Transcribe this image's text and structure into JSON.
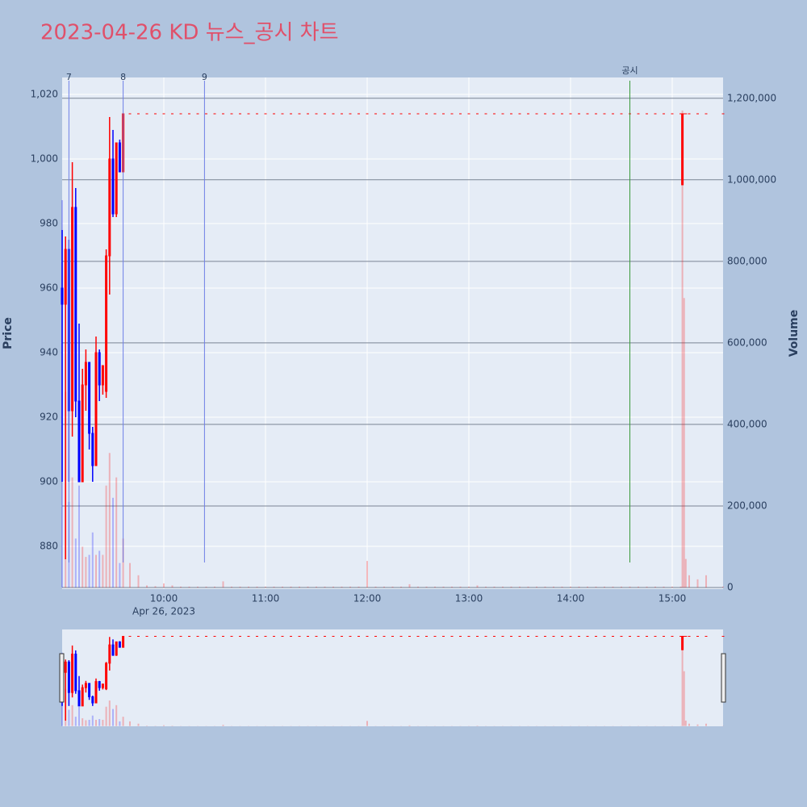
{
  "chart_data": {
    "type": "candlestick",
    "title": "2023-04-26 KD 뉴스_공시 차트",
    "y_label": "Price",
    "y2_label": "Volume",
    "x_sublabel": "Apr 26, 2023",
    "up_color": "#ff0000",
    "down_color": "#0000ff",
    "xlim": [
      "09:00",
      "15:30"
    ],
    "xticks": [
      "10:00",
      "11:00",
      "12:00",
      "13:00",
      "14:00",
      "15:00"
    ],
    "ylim": [
      866.75,
      1025.25
    ],
    "yticks": [
      880,
      900,
      920,
      940,
      960,
      980,
      {
        "value": 1000,
        "label": "1,000"
      },
      {
        "value": 1020,
        "label": "1,020"
      }
    ],
    "y2lim": [
      -4000,
      1251000
    ],
    "y2ticks": [
      0,
      {
        "value": 200000,
        "label": "200,000"
      },
      {
        "value": 400000,
        "label": "400,000"
      },
      {
        "value": 600000,
        "label": "600,000"
      },
      {
        "value": 800000,
        "label": "800,000"
      },
      {
        "value": 1000000,
        "label": "1,000,000"
      },
      {
        "value": 1200000,
        "label": "1,200,000"
      }
    ],
    "grid": true,
    "markers": [
      {
        "x": "09:04",
        "label": "7",
        "color": "#6f7fe6"
      },
      {
        "x": "09:36",
        "label": "8",
        "color": "#6f7fe6"
      },
      {
        "x": "10:24",
        "label": "9",
        "color": "#6f7fe6"
      },
      {
        "x": "14:35",
        "label": "공시",
        "color": "#3a9a3a"
      }
    ],
    "x": [
      "09:00",
      "09:02",
      "09:04",
      "09:06",
      "09:08",
      "09:10",
      "09:12",
      "09:14",
      "09:16",
      "09:18",
      "09:20",
      "09:22",
      "09:24",
      "09:26",
      "09:28",
      "09:30",
      "09:32",
      "09:34",
      "09:36",
      "09:40",
      "09:45",
      "09:50",
      "09:55",
      "10:00",
      "10:05",
      "10:10",
      "10:15",
      "10:20",
      "10:25",
      "10:30",
      "10:35",
      "10:40",
      "10:45",
      "10:50",
      "10:55",
      "11:00",
      "11:05",
      "11:10",
      "11:15",
      "11:20",
      "11:25",
      "11:30",
      "11:35",
      "11:40",
      "11:45",
      "11:50",
      "11:55",
      "12:00",
      "12:05",
      "12:10",
      "12:15",
      "12:20",
      "12:25",
      "12:30",
      "12:35",
      "12:40",
      "12:45",
      "12:50",
      "12:55",
      "13:00",
      "13:05",
      "13:10",
      "13:15",
      "13:20",
      "13:25",
      "13:30",
      "13:35",
      "13:40",
      "13:45",
      "13:50",
      "13:55",
      "14:00",
      "14:05",
      "14:10",
      "14:15",
      "14:20",
      "14:25",
      "14:30",
      "14:35",
      "14:40",
      "14:45",
      "14:50",
      "14:55",
      "15:00",
      "15:05",
      "15:06",
      "15:07",
      "15:08",
      "15:10",
      "15:15",
      "15:20",
      "15:30"
    ],
    "open": [
      960,
      955,
      972,
      922,
      985,
      925,
      900,
      930,
      937,
      915,
      905,
      940,
      930,
      928,
      970,
      1000,
      983,
      1005,
      996,
      1014,
      1014,
      1014,
      1014,
      1014,
      1014,
      1014,
      1014,
      1014,
      1014,
      1014,
      1014,
      1014,
      1014,
      1014,
      1014,
      1014,
      1014,
      1014,
      1014,
      1014,
      1014,
      1014,
      1014,
      1014,
      1014,
      1014,
      1014,
      1014,
      1014,
      1014,
      1014,
      1014,
      1014,
      1014,
      1014,
      1014,
      1014,
      1014,
      1014,
      1014,
      1014,
      1014,
      1014,
      1014,
      1014,
      1014,
      1014,
      1014,
      1014,
      1014,
      1014,
      1014,
      1014,
      1014,
      1014,
      1014,
      1014,
      1014,
      1014,
      1014,
      1014,
      1014,
      1014,
      1014,
      1014,
      992,
      1014,
      1014,
      1014,
      1014,
      1014,
      1014
    ],
    "high": [
      978,
      976,
      975,
      999,
      991,
      949,
      935,
      941,
      937,
      917,
      945,
      941,
      936,
      972,
      1013,
      1009,
      1005,
      1006,
      1014,
      1014,
      1014,
      1014,
      1014,
      1014,
      1014,
      1014,
      1014,
      1014,
      1014,
      1014,
      1014,
      1014,
      1014,
      1014,
      1014,
      1014,
      1014,
      1014,
      1014,
      1014,
      1014,
      1014,
      1014,
      1014,
      1014,
      1014,
      1014,
      1014,
      1014,
      1014,
      1014,
      1014,
      1014,
      1014,
      1014,
      1014,
      1014,
      1014,
      1014,
      1014,
      1014,
      1014,
      1014,
      1014,
      1014,
      1014,
      1014,
      1014,
      1014,
      1014,
      1014,
      1014,
      1014,
      1014,
      1014,
      1014,
      1014,
      1014,
      1014,
      1014,
      1014,
      1014,
      1014,
      1014,
      1014,
      1014,
      1014,
      1014,
      1014,
      1014,
      1014,
      1014
    ],
    "low": [
      900,
      876,
      900,
      914,
      920,
      900,
      900,
      922,
      910,
      900,
      905,
      925,
      927,
      926,
      958,
      982,
      982,
      996,
      996,
      1014,
      1014,
      1014,
      1014,
      1014,
      1014,
      1014,
      1014,
      1014,
      1014,
      1014,
      1014,
      1014,
      1014,
      1014,
      1014,
      1014,
      1014,
      1014,
      1014,
      1014,
      1014,
      1014,
      1014,
      1014,
      1014,
      1014,
      1014,
      1014,
      1014,
      1014,
      1014,
      1014,
      1014,
      1014,
      1014,
      1014,
      1014,
      1014,
      1014,
      1014,
      1014,
      1014,
      1014,
      1014,
      1014,
      1014,
      1014,
      1014,
      1014,
      1014,
      1014,
      1014,
      1014,
      1014,
      1014,
      1014,
      1014,
      1014,
      1014,
      1014,
      1014,
      1014,
      1014,
      1014,
      1014,
      992,
      1014,
      1014,
      1014,
      1014,
      1014,
      1014
    ],
    "close": [
      955,
      972,
      922,
      985,
      925,
      900,
      930,
      937,
      915,
      905,
      940,
      930,
      936,
      970,
      1000,
      983,
      1005,
      996,
      1014,
      1014,
      1014,
      1014,
      1014,
      1014,
      1014,
      1014,
      1014,
      1014,
      1014,
      1014,
      1014,
      1014,
      1014,
      1014,
      1014,
      1014,
      1014,
      1014,
      1014,
      1014,
      1014,
      1014,
      1014,
      1014,
      1014,
      1014,
      1014,
      1014,
      1014,
      1014,
      1014,
      1014,
      1014,
      1014,
      1014,
      1014,
      1014,
      1014,
      1014,
      1014,
      1014,
      1014,
      1014,
      1014,
      1014,
      1014,
      1014,
      1014,
      1014,
      1014,
      1014,
      1014,
      1014,
      1014,
      1014,
      1014,
      1014,
      1014,
      1014,
      1014,
      1014,
      1014,
      1014,
      1014,
      1014,
      1014,
      1014,
      1014,
      1014,
      1014,
      1014,
      1014
    ],
    "volume": [
      950000,
      480000,
      210000,
      270000,
      120000,
      250000,
      100000,
      75000,
      80000,
      135000,
      80000,
      90000,
      80000,
      250000,
      330000,
      220000,
      270000,
      60000,
      120000,
      60000,
      30000,
      5000,
      3000,
      10000,
      5000,
      2000,
      2000,
      2000,
      2000,
      2000,
      15000,
      2000,
      2000,
      2000,
      2000,
      2000,
      2000,
      2000,
      2000,
      2000,
      2000,
      2000,
      2000,
      2000,
      2000,
      2000,
      2000,
      65000,
      2000,
      2000,
      2000,
      2000,
      8000,
      2000,
      2000,
      2000,
      2000,
      2000,
      2000,
      2000,
      5000,
      2000,
      2000,
      2000,
      2000,
      2000,
      2000,
      2000,
      2000,
      2000,
      2000,
      2000,
      2000,
      2000,
      2000,
      2000,
      2000,
      2000,
      2000,
      2000,
      2000,
      2000,
      2000,
      2000,
      2000,
      1170000,
      710000,
      70000,
      30000,
      20000,
      30000,
      2000
    ]
  }
}
